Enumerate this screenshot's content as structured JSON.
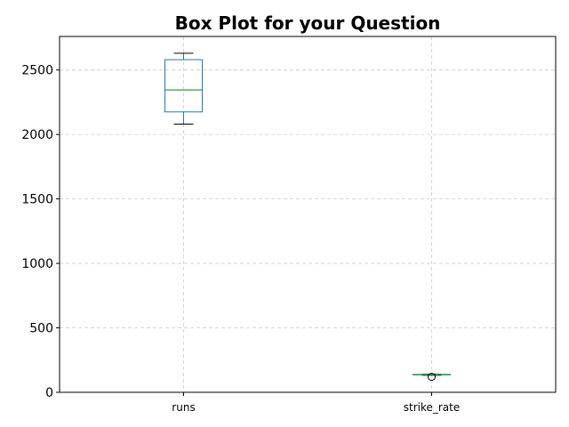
{
  "chart_data": {
    "type": "box",
    "title": "Box Plot for your Question",
    "xlabel": "",
    "ylabel": "",
    "categories": [
      "runs",
      "strike_rate"
    ],
    "ylim": [
      0,
      2760
    ],
    "yticks": [
      0,
      500,
      1000,
      1500,
      2000,
      2500
    ],
    "grid": true,
    "box_color": "#1f77b4",
    "median_color": "#2ca02c",
    "whisker_color": "#000000",
    "boxes": [
      {
        "name": "runs",
        "whisker_low": 2080,
        "q1": 2175,
        "median": 2345,
        "q3": 2580,
        "whisker_high": 2630,
        "outliers": []
      },
      {
        "name": "strike_rate",
        "whisker_low": 132,
        "q1": 135,
        "median": 137,
        "q3": 139,
        "whisker_high": 141,
        "outliers": [
          120
        ]
      }
    ]
  }
}
